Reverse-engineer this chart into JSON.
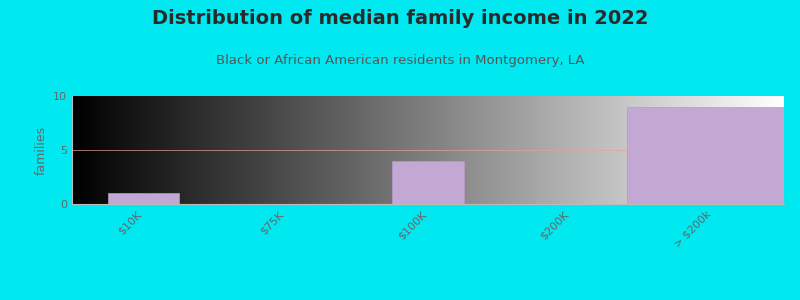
{
  "title": "Distribution of median family income in 2022",
  "subtitle": "Black or African American residents in Montgomery, LA",
  "categories": [
    "$10K",
    "$75K",
    "$100K",
    "$200K",
    "> $200k"
  ],
  "values": [
    1,
    0,
    4,
    0,
    9
  ],
  "bar_color": "#c4a8d4",
  "bar_edge_color": "#b898c8",
  "ylabel": "families",
  "ylim": [
    0,
    10
  ],
  "yticks": [
    0,
    5,
    10
  ],
  "background_color": "#00e8f0",
  "title_color": "#2a2a2a",
  "subtitle_color": "#555555",
  "axis_color": "#666666",
  "tick_color": "#666666",
  "grid_color": "#e8a0a0",
  "title_fontsize": 14,
  "subtitle_fontsize": 9.5,
  "ylabel_fontsize": 9,
  "tick_fontsize": 8
}
